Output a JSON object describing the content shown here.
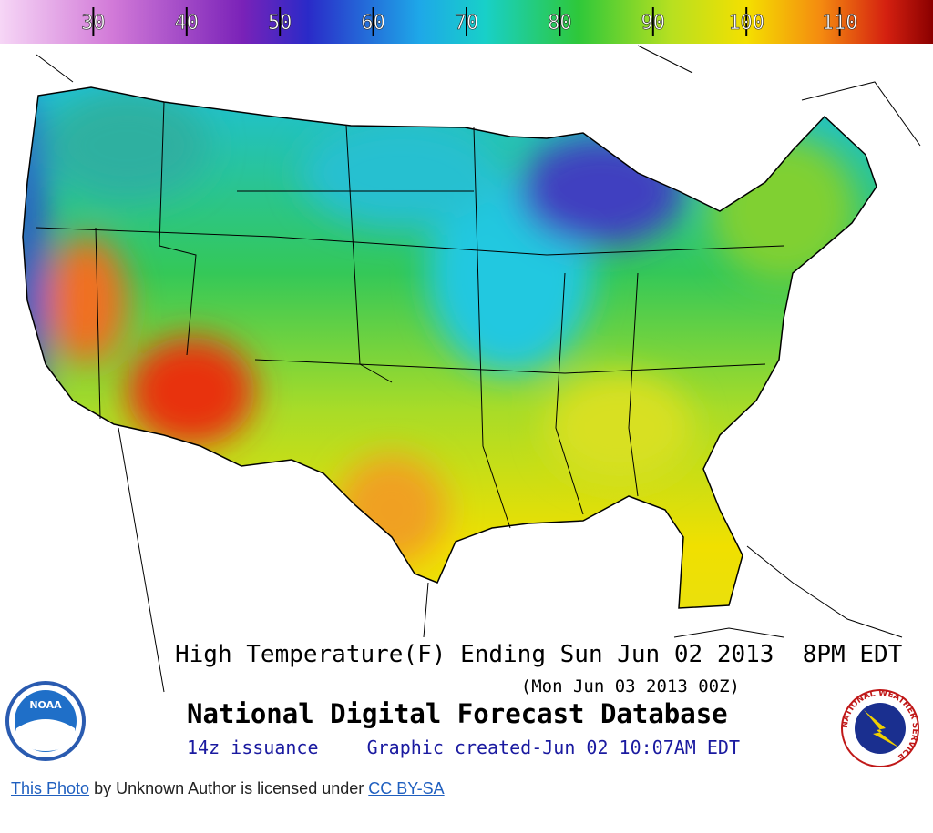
{
  "legend": {
    "range": [
      20,
      120
    ],
    "ticks": [
      30,
      40,
      50,
      60,
      70,
      80,
      90,
      100,
      110
    ]
  },
  "title": "High Temperature(F) Ending Sun Jun 02 2013  8PM EDT",
  "subtitle": "(Mon Jun 03 2013 00Z)",
  "product": "National Digital Forecast Database",
  "issuance": "14z issuance",
  "created": "Graphic created-Jun 02 10:07AM EDT",
  "logos": {
    "noaa": "NOAA",
    "nws": "NATIONAL WEATHER SERVICE"
  },
  "attribution": {
    "photo_link": "This Photo",
    "text": "by Unknown Author is licensed under",
    "license_link": "CC BY-SA"
  }
}
